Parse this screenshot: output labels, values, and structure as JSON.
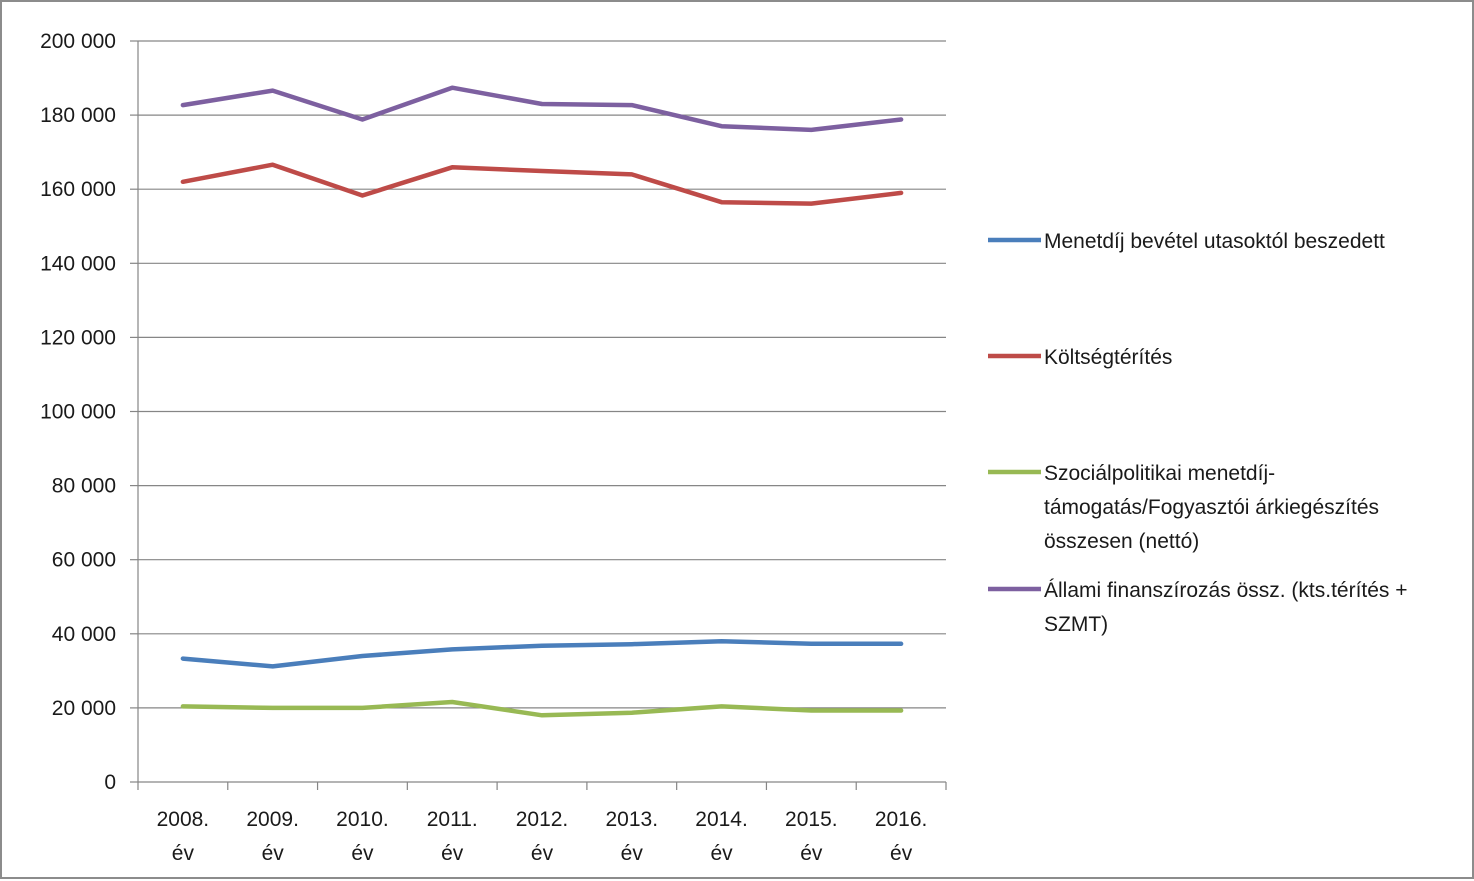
{
  "chart_data": {
    "type": "line",
    "title": "",
    "xlabel": "",
    "ylabel": "",
    "ylim": [
      0,
      200000
    ],
    "y_ticks": [
      "0",
      "20 000",
      "40 000",
      "60 000",
      "80 000",
      "100 000",
      "120 000",
      "140 000",
      "160 000",
      "180 000",
      "200 000"
    ],
    "y_tick_values": [
      0,
      20000,
      40000,
      60000,
      80000,
      100000,
      120000,
      140000,
      160000,
      180000,
      200000
    ],
    "categories": [
      [
        "2008.",
        "év"
      ],
      [
        "2009.",
        "év"
      ],
      [
        "2010.",
        "év"
      ],
      [
        "2011.",
        "év"
      ],
      [
        "2012.",
        "év"
      ],
      [
        "2013.",
        "év"
      ],
      [
        "2014.",
        "év"
      ],
      [
        "2015.",
        "év"
      ],
      [
        "2016.",
        "év"
      ]
    ],
    "grid": true,
    "legend_position": "right",
    "series": [
      {
        "name_lines": [
          "Menetdíj bevétel utasoktól beszedett"
        ],
        "color": "#4a7ebb",
        "values": [
          33300,
          31200,
          34000,
          35800,
          36800,
          37200,
          38000,
          37300,
          37300
        ]
      },
      {
        "name_lines": [
          "Költségtérítés"
        ],
        "color": "#be4b48",
        "values": [
          162000,
          166600,
          158300,
          165900,
          164900,
          164000,
          156500,
          156100,
          159000
        ]
      },
      {
        "name_lines": [
          "Szociálpolitikai menetdíj-",
          "támogatás/Fogyasztói árkiegészítés",
          "összesen (nettó)"
        ],
        "color": "#98b954",
        "values": [
          20400,
          20000,
          20000,
          21600,
          18000,
          18700,
          20400,
          19300,
          19300
        ]
      },
      {
        "name_lines": [
          "Állami finanszírozás össz. (kts.térítés +",
          "SZMT)"
        ],
        "color": "#7d60a0",
        "values": [
          182700,
          186600,
          178800,
          187400,
          183000,
          182700,
          177000,
          176000,
          178800
        ]
      }
    ]
  }
}
